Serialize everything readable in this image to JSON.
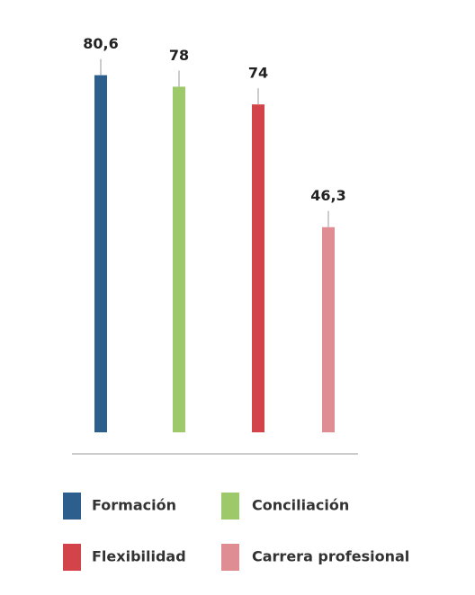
{
  "chart_data": {
    "type": "bar",
    "categories": [
      "Formación",
      "Conciliación",
      "Flexibilidad",
      "Carrera profesional"
    ],
    "values": [
      80.6,
      78,
      74,
      46.3
    ],
    "value_labels": [
      "80,6",
      "78",
      "74",
      "46,3"
    ],
    "colors": [
      "#2c5f8e",
      "#9ec96b",
      "#d3434a",
      "#e08c93"
    ]
  }
}
